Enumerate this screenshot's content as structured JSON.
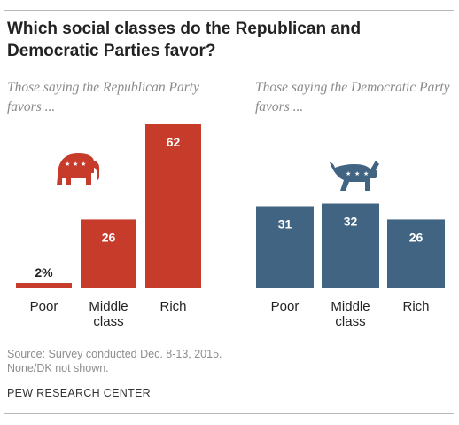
{
  "title": "Which social classes do the Republican and Democratic Parties favor?",
  "colors": {
    "republican": "#c63b2a",
    "democratic": "#416482",
    "label_on_bar": "#ffffff",
    "label_above_bar": "#222222"
  },
  "chart_data": [
    {
      "type": "bar",
      "title": "Those saying the Republican Party favors ...",
      "categories": [
        "Poor",
        "Middle class",
        "Rich"
      ],
      "values": [
        2,
        26,
        62
      ],
      "value_labels": [
        "2%",
        "26",
        "62"
      ],
      "icon": "republican-elephant-icon",
      "xlabel": "",
      "ylabel": "",
      "ylim": [
        0,
        62
      ],
      "grid": false,
      "legend": "none"
    },
    {
      "type": "bar",
      "title": "Those saying the Democratic Party favors ...",
      "categories": [
        "Poor",
        "Middle class",
        "Rich"
      ],
      "values": [
        31,
        32,
        26
      ],
      "value_labels": [
        "31",
        "32",
        "26"
      ],
      "icon": "democratic-donkey-icon",
      "xlabel": "",
      "ylabel": "",
      "ylim": [
        0,
        62
      ],
      "grid": false,
      "legend": "none"
    }
  ],
  "footer": {
    "source": "Source: Survey conducted Dec. 8-13, 2015.",
    "note": "None/DK not shown.",
    "brand": "PEW RESEARCH CENTER"
  }
}
